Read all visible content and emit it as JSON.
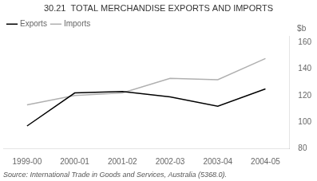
{
  "chart_data": {
    "type": "line",
    "title": "30.21  TOTAL MERCHANDISE EXPORTS AND IMPORTS",
    "ylabel": "$b",
    "annotations": [
      "Source: International Trade in Goods and Services, Australia (5368.0)."
    ],
    "categories": [
      "1999-00",
      "2000-01",
      "2001-02",
      "2002-03",
      "2003-04",
      "2004-05"
    ],
    "series": [
      {
        "name": "Exports",
        "color": "#000000",
        "values": [
          97,
          122,
          123,
          119,
          112,
          125
        ]
      },
      {
        "name": "Imports",
        "color": "#b0b0b0",
        "values": [
          113,
          120,
          122,
          133,
          132,
          148
        ]
      }
    ],
    "ylim": [
      80,
      165
    ],
    "yticks": [
      80,
      100,
      120,
      140,
      160
    ],
    "grid": false,
    "legend": "upper left"
  }
}
